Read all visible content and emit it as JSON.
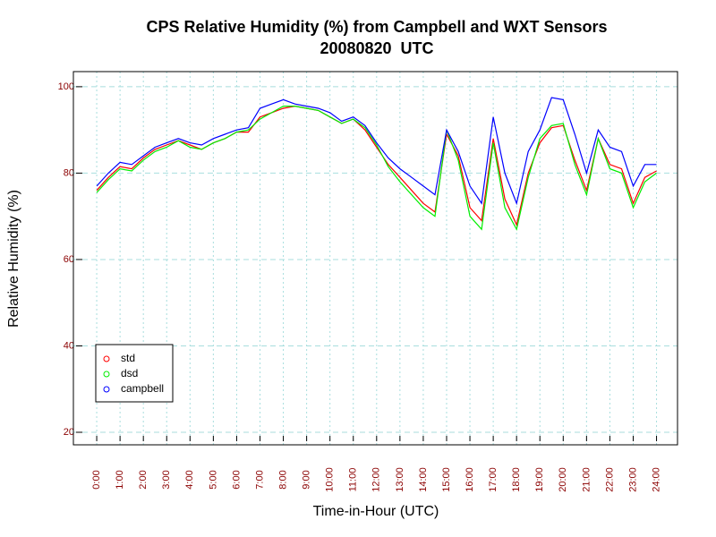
{
  "chart_data": {
    "type": "line",
    "title": "CPS Relative Humidity (%) from Campbell and WXT Sensors",
    "subtitle": "20080820  UTC",
    "x_label": "Time-in-Hour (UTC)",
    "y_label": "Relative Humidity (%)",
    "x": [
      0,
      0.5,
      1,
      1.5,
      2,
      2.5,
      3,
      3.5,
      4,
      4.5,
      5,
      5.5,
      6,
      6.5,
      7,
      7.5,
      8,
      8.5,
      9,
      9.5,
      10,
      10.5,
      11,
      11.5,
      12,
      12.5,
      13,
      13.5,
      14,
      14.5,
      15,
      15.5,
      16,
      16.5,
      17,
      17.5,
      18,
      18.5,
      19,
      19.5,
      20,
      20.5,
      21,
      21.5,
      22,
      22.5,
      23,
      23.5,
      24
    ],
    "series": [
      {
        "name": "std",
        "color": "#ff0000",
        "values": [
          76,
          79,
          81.5,
          81,
          83.5,
          85.5,
          86.5,
          87.5,
          86.5,
          85.5,
          87,
          88,
          89.5,
          89.5,
          93,
          94,
          95,
          95.5,
          95,
          94.5,
          93,
          91.5,
          92.5,
          90,
          86,
          82,
          79,
          76,
          73,
          71,
          89,
          84,
          72,
          69,
          88,
          74,
          68,
          80,
          87,
          90.5,
          91,
          83,
          76,
          88,
          82,
          81,
          73,
          79,
          80.5
        ]
      },
      {
        "name": "dsd",
        "color": "#00ee00",
        "values": [
          75.5,
          78.5,
          81,
          80.5,
          83,
          85,
          86,
          87.5,
          86,
          85.5,
          87,
          88,
          89.5,
          90,
          92.5,
          94,
          95.5,
          95.5,
          95,
          94.5,
          93,
          91.5,
          92.5,
          90.5,
          86.5,
          81.5,
          78,
          75,
          72,
          70,
          90,
          83,
          70,
          67,
          87,
          72,
          67,
          79,
          88,
          91,
          91.5,
          82,
          75,
          88,
          81,
          80,
          72,
          78,
          80
        ]
      },
      {
        "name": "campbell",
        "color": "#0000ff",
        "values": [
          77,
          80,
          82.5,
          82,
          84,
          86,
          87,
          88,
          87,
          86.5,
          88,
          89,
          90,
          90.5,
          95,
          96,
          97,
          96,
          95.5,
          95,
          94,
          92,
          93,
          91,
          87,
          83.5,
          81,
          79,
          77,
          75,
          90,
          85,
          77,
          73,
          93,
          80,
          73,
          85,
          90,
          97.5,
          97,
          89,
          80,
          90,
          86,
          85,
          77,
          82,
          82
        ]
      }
    ],
    "xlim": [
      -1,
      24.9
    ],
    "ylim": [
      17.1,
      103.5
    ],
    "xticks": [
      {
        "value": 0,
        "label": "0:00"
      },
      {
        "value": 1,
        "label": "1:00"
      },
      {
        "value": 2,
        "label": "2:00"
      },
      {
        "value": 3,
        "label": "3:00"
      },
      {
        "value": 4,
        "label": "4:00"
      },
      {
        "value": 5,
        "label": "5:00"
      },
      {
        "value": 6,
        "label": "6:00"
      },
      {
        "value": 7,
        "label": "7:00"
      },
      {
        "value": 8,
        "label": "8:00"
      },
      {
        "value": 9,
        "label": "9:00"
      },
      {
        "value": 10,
        "label": "10:00"
      },
      {
        "value": 11,
        "label": "11:00"
      },
      {
        "value": 12,
        "label": "12:00"
      },
      {
        "value": 13,
        "label": "13:00"
      },
      {
        "value": 14,
        "label": "14:00"
      },
      {
        "value": 15,
        "label": "15:00"
      },
      {
        "value": 16,
        "label": "16:00"
      },
      {
        "value": 17,
        "label": "17:00"
      },
      {
        "value": 18,
        "label": "18:00"
      },
      {
        "value": 19,
        "label": "19:00"
      },
      {
        "value": 20,
        "label": "20:00"
      },
      {
        "value": 21,
        "label": "21:00"
      },
      {
        "value": 22,
        "label": "22:00"
      },
      {
        "value": 23,
        "label": "23:00"
      },
      {
        "value": 24,
        "label": "24:00"
      }
    ],
    "yticks": [
      20,
      40,
      60,
      80,
      100
    ],
    "grid": true,
    "legend": "bottom-left"
  }
}
